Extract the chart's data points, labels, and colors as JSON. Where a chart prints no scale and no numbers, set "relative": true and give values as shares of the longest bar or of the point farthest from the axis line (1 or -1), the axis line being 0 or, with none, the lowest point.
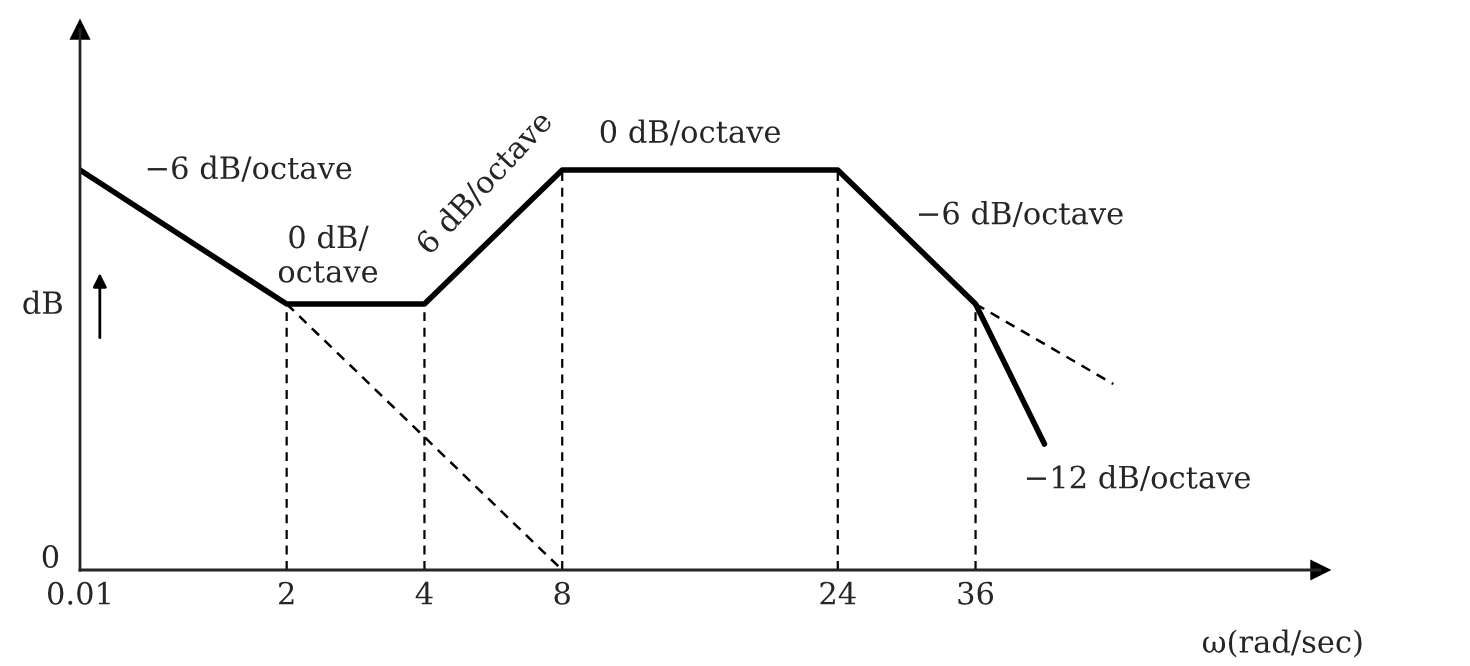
{
  "chart_data": {
    "type": "line",
    "relative": true,
    "ylabel": "dB",
    "xlabel": "ω(rad/sec)",
    "categories": [
      "0.01",
      null,
      null,
      "2",
      null,
      "4",
      null,
      "8",
      null,
      null,
      null,
      "24",
      null,
      "36",
      null,
      null,
      null,
      null,
      null
    ],
    "series": [
      {
        "color": "#000000",
        "line_style": "solid",
        "values": [
          1.0,
          null,
          null,
          0.665,
          null,
          0.665,
          null,
          1.0,
          null,
          null,
          null,
          1.0,
          null,
          0.665,
          0.315,
          null,
          null,
          null,
          null
        ]
      },
      {
        "color": "#000000",
        "line_style": "dashed",
        "values": [
          null,
          null,
          null,
          0.665,
          null,
          null,
          null,
          0,
          null,
          null,
          null,
          null,
          null,
          null,
          null,
          null,
          null,
          null,
          null
        ]
      },
      {
        "color": "#000000",
        "line_style": "dashed",
        "values": [
          null,
          null,
          null,
          null,
          null,
          null,
          null,
          null,
          null,
          null,
          null,
          null,
          null,
          0.665,
          null,
          0.465,
          null,
          null,
          null
        ]
      }
    ],
    "annotations": [
      "−6 dB/octave",
      "0 dB/\noctave",
      "6 dB/octave",
      "0 dB/octave",
      "−6 dB/octave",
      "−12 dB/octave",
      "0"
    ],
    "grid": "x",
    "legend": false
  }
}
